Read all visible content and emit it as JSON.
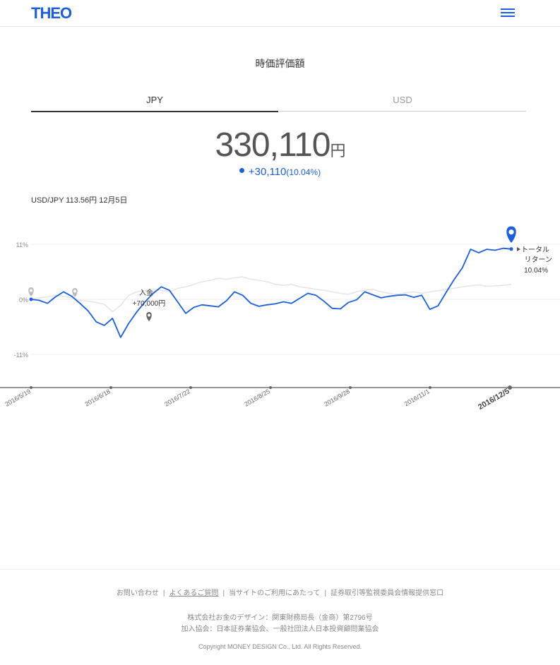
{
  "header": {
    "logo": "THEO",
    "menu_icon": "hamburger-menu-icon"
  },
  "title": "時価評価額",
  "tabs": [
    {
      "label": "JPY",
      "active": true
    },
    {
      "label": "USD",
      "active": false
    }
  ],
  "value": {
    "amount": "330,110",
    "unit": "円"
  },
  "change": {
    "amount": "+30,110",
    "percent": "(10.04%)"
  },
  "fx_rate": "USD/JPY 113.56円 12月5日",
  "chart_data": {
    "type": "line",
    "y_ticks": [
      "11%",
      "0%",
      "-11%"
    ],
    "ylim": [
      -11,
      11
    ],
    "x_ticks": [
      "2016/5/19",
      "2016/6/18",
      "2016/7/22",
      "2016/8/25",
      "2016/9/28",
      "2016/11/1",
      "2016/12/5"
    ],
    "colors": {
      "primary": "#1a5fe0",
      "benchmark": "#e4e4e4"
    },
    "series": [
      {
        "values": [
          0,
          -0.2,
          -0.8,
          0.5,
          1.5,
          0.6,
          -0.8,
          -2.3,
          -4.5,
          -5.2,
          -3.8,
          -7.6,
          -4.8,
          -2.5,
          -0.5,
          1.2,
          2.5,
          1.8,
          -0.5,
          -2.8,
          -1.6,
          -1.1,
          -1.3,
          -1.5,
          -0.3,
          1.5,
          0.8,
          -0.8,
          -1.4,
          -1.1,
          -0.9,
          -0.5,
          -0.8,
          0.2,
          1.2,
          0.8,
          -0.4,
          -1.8,
          -1.9,
          -0.6,
          -0.1,
          1.5,
          0.9,
          0.3,
          0.6,
          0.8,
          0.9,
          0.4,
          0.8,
          -2.0,
          -1.3,
          1.4,
          4.0,
          6.3,
          10.0,
          9.3,
          10.0,
          9.8,
          10.2,
          10.04
        ]
      },
      {
        "values": [
          0,
          0.3,
          0.5,
          0.8,
          0.6,
          0.3,
          -0.2,
          -0.4,
          -0.6,
          -1.0,
          -2.5,
          -1.2,
          0.8,
          1.5,
          1.8,
          2.0,
          1.8,
          1.5,
          2.2,
          2.5,
          3.0,
          3.5,
          3.8,
          4.2,
          4.0,
          4.3,
          4.5,
          4.0,
          3.8,
          3.5,
          3.0,
          2.8,
          3.0,
          2.5,
          2.3,
          2.0,
          1.8,
          1.5,
          1.2,
          1.0,
          1.5,
          1.8,
          2.0,
          1.5,
          1.2,
          1.0,
          1.3,
          1.5,
          1.2,
          1.5,
          1.7,
          2.0,
          2.2,
          2.5,
          2.7,
          2.9,
          2.6,
          2.7,
          2.8,
          3.0
        ]
      }
    ],
    "events": [
      {
        "label": "入金",
        "amount": "+70,000円"
      }
    ],
    "total_return": {
      "label_1": "トータル",
      "label_2": "リターン",
      "value": "10.04%"
    }
  },
  "footer": {
    "links": [
      "お問い合わせ",
      "よくあるご質問",
      "当サイトのご利用にあたって",
      "証券取引等監視委員会情報提供窓口"
    ],
    "company": "株式会社お金のデザイン：関東財務局長（金商）第2796号",
    "association": "加入協会：日本証券業協会、一般社団法人日本投資顧問業協会",
    "copyright": "Copyright MONEY DESIGN Co., Ltd. All Rights Reserved."
  }
}
